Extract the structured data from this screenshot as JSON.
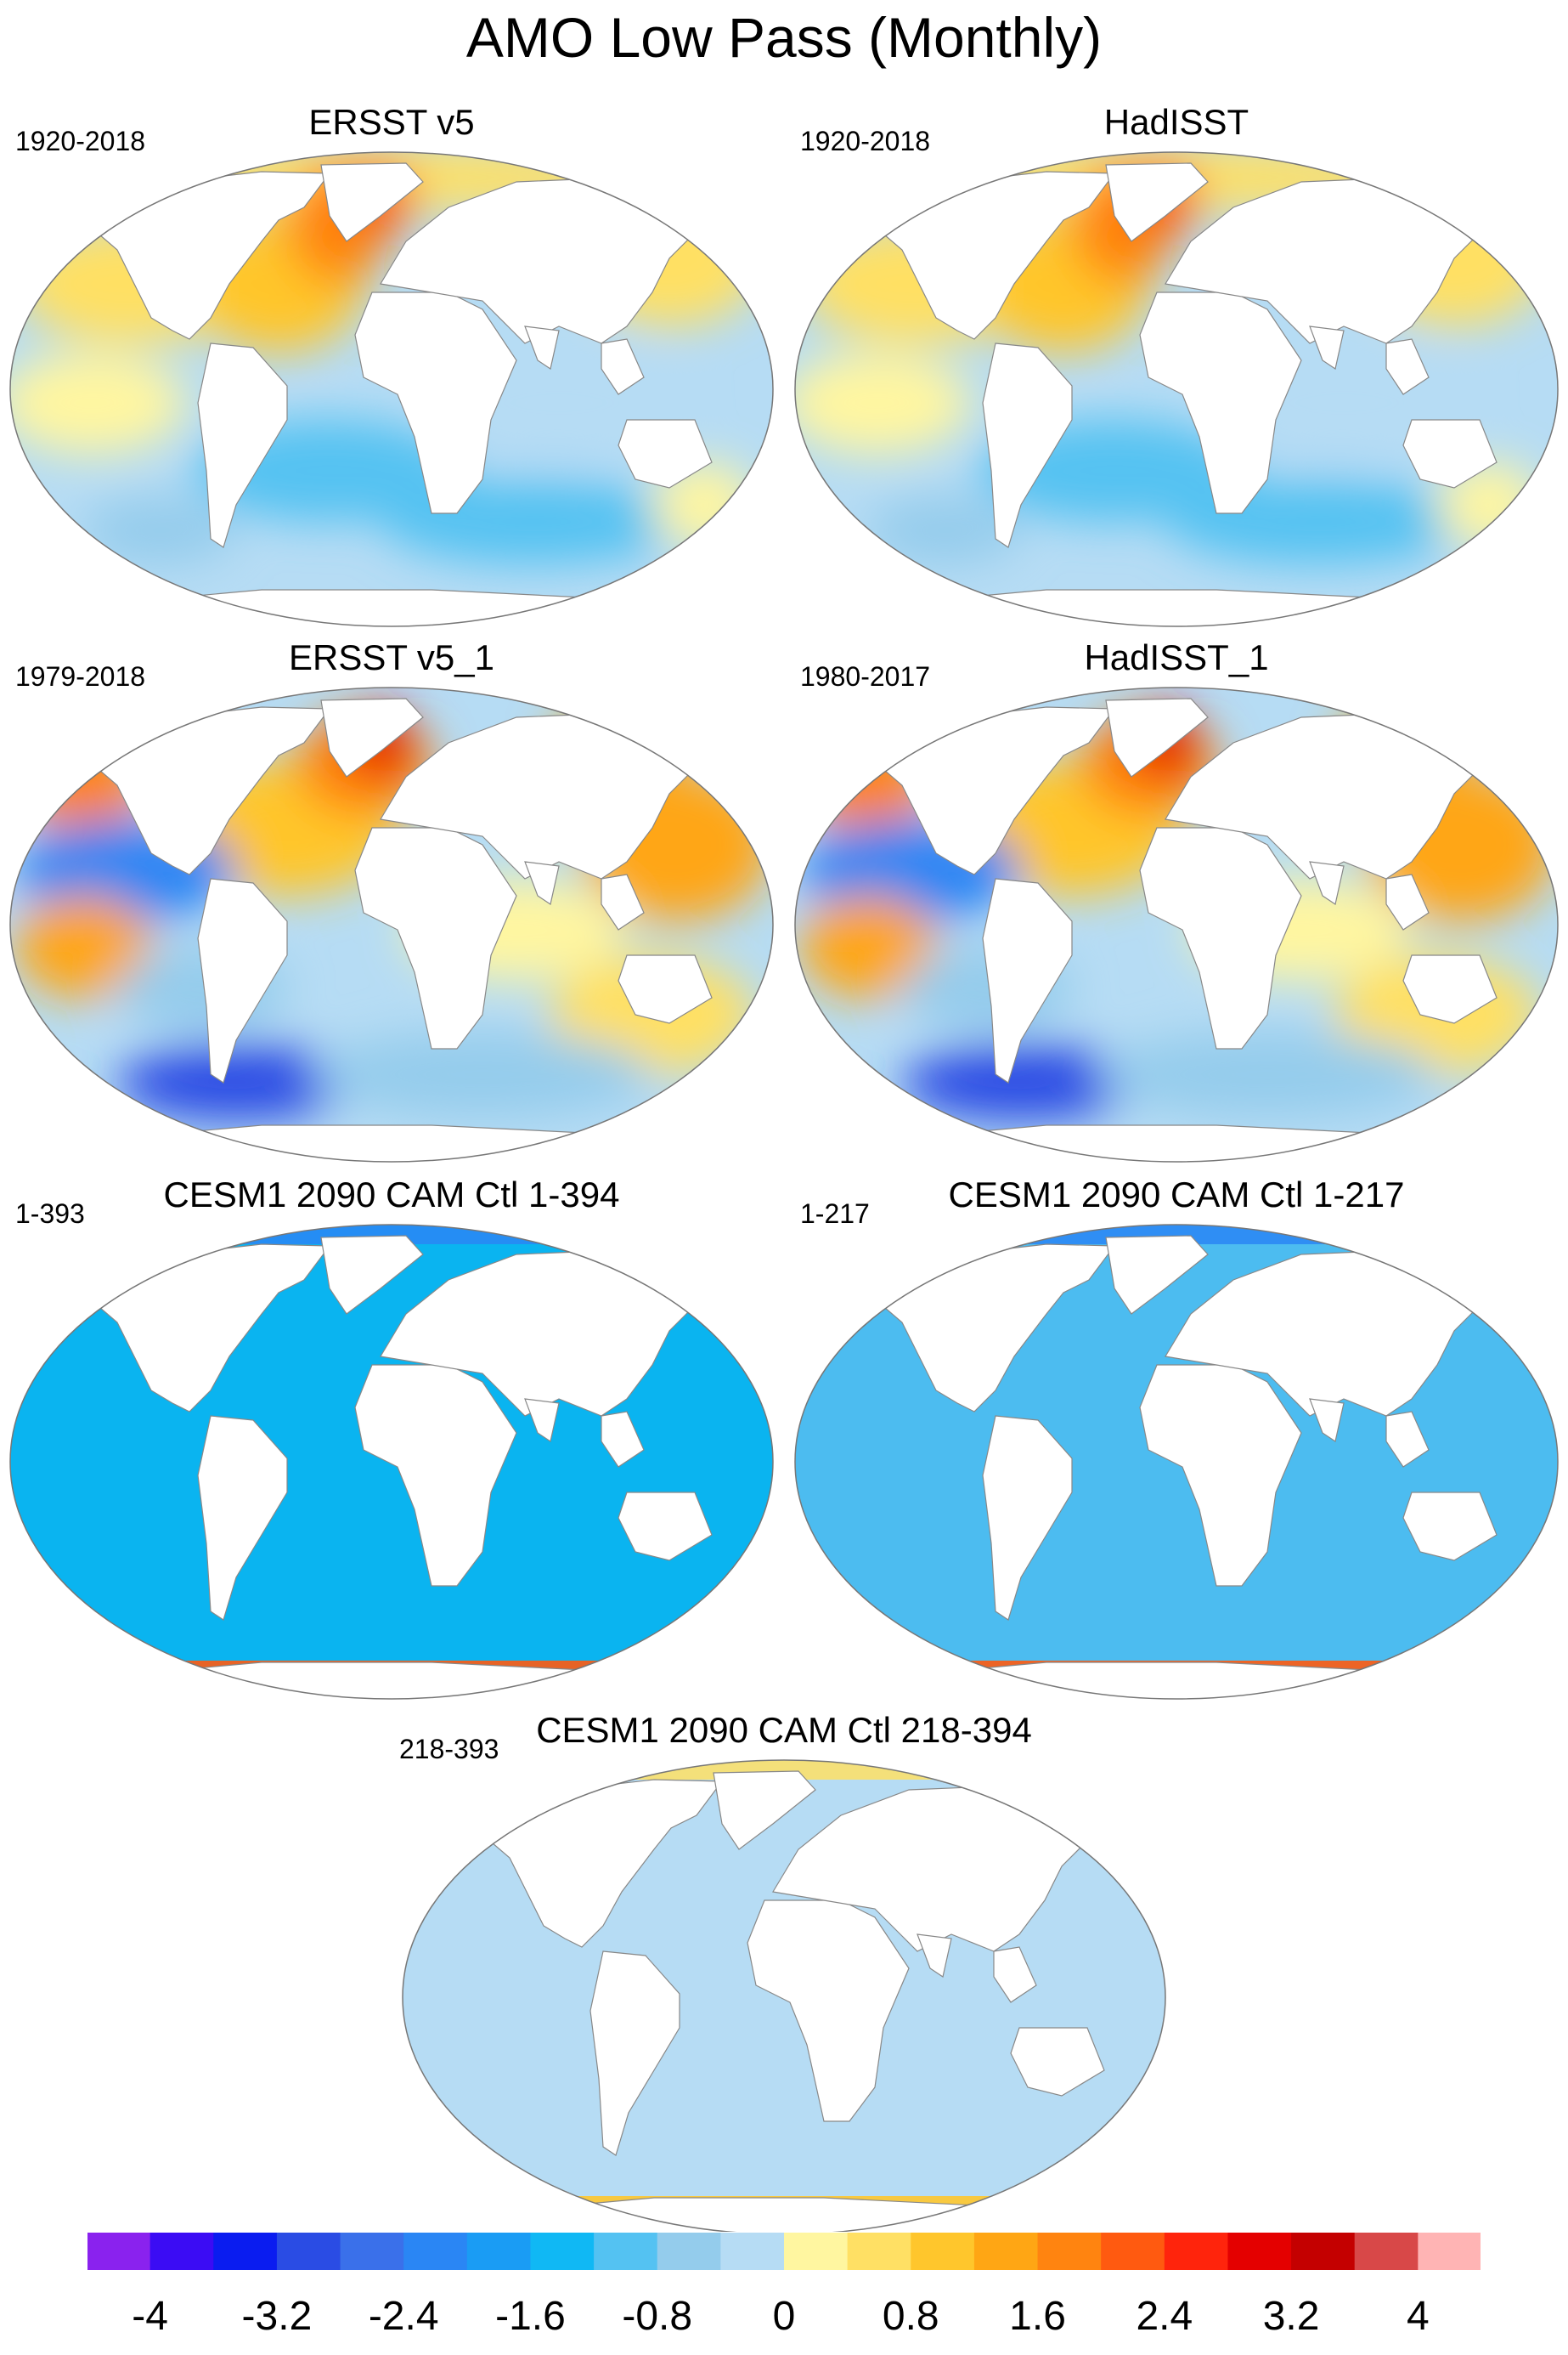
{
  "figure": {
    "title": "AMO Low Pass (Monthly)"
  },
  "panels": [
    {
      "id": "ersst",
      "title": "ERSST v5",
      "period": "1920-2018",
      "style": "obs"
    },
    {
      "id": "hadisst",
      "title": "HadISST",
      "period": "1920-2018",
      "style": "obs"
    },
    {
      "id": "ersst1",
      "title": "ERSST v5_1",
      "period": "1979-2018",
      "style": "obs-recent"
    },
    {
      "id": "hadisst1",
      "title": "HadISST_1",
      "period": "1980-2017",
      "style": "obs-recent"
    },
    {
      "id": "cesm_a",
      "title": "CESM1 2090 CAM Ctl 1-394",
      "period": "1-393",
      "style": "model",
      "fill_color": "#0ab4f0"
    },
    {
      "id": "cesm_b",
      "title": "CESM1 2090 CAM Ctl 1-217",
      "period": "1-217",
      "style": "model",
      "fill_color": "#4cbcf0"
    },
    {
      "id": "cesm_c",
      "title": "CESM1 2090 CAM Ctl 218-394",
      "period": "218-393",
      "style": "model",
      "fill_color": "#b6dcf4"
    }
  ],
  "colorbar": {
    "colors": [
      "#8a22ee",
      "#3b0cf4",
      "#0a1cf0",
      "#2a4ce4",
      "#3a70ea",
      "#2a86f4",
      "#1a9cf4",
      "#10b8f4",
      "#54c2f2",
      "#94ccec",
      "#b6dcf4",
      "#fff6a0",
      "#ffe064",
      "#ffc62c",
      "#ffa614",
      "#ff8410",
      "#ff5a10",
      "#ff240c",
      "#e40000",
      "#c40000",
      "#d84848",
      "#ffb4b4"
    ],
    "tick_labels": [
      "-4",
      "-3.2",
      "-2.4",
      "-1.6",
      "-0.8",
      "0",
      "0.8",
      "1.6",
      "2.4",
      "3.2",
      "4"
    ]
  }
}
